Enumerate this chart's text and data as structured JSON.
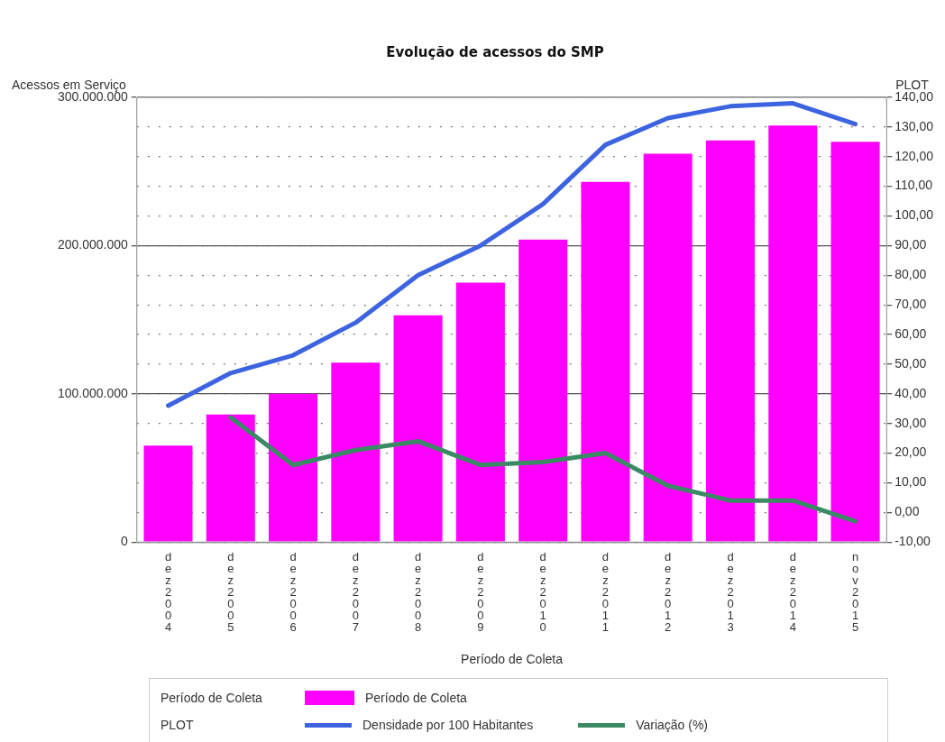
{
  "chart_data": {
    "type": "bar",
    "title": "Evolução de acessos do SMP",
    "xlabel": "Período de Coleta",
    "ylabel": "Acessos em Serviço",
    "y2label": "PLOT",
    "categories": [
      "dez2004",
      "dez2005",
      "dez2006",
      "dez2007",
      "dez2008",
      "dez2009",
      "dez2010",
      "dez2011",
      "dez2012",
      "dez2013",
      "dez2014",
      "nov2015"
    ],
    "series": [
      {
        "name": "Período de Coleta",
        "color": "#ff00ff",
        "values": [
          65000000,
          86000000,
          100000000,
          121000000,
          153000000,
          175000000,
          204000000,
          243000000,
          262000000,
          271000000,
          281000000,
          270000000
        ]
      },
      {
        "name": "Densidade por 100 Habitantes",
        "type": "line",
        "axis": "y2",
        "color": "#3d64e0",
        "values": [
          36,
          47,
          53,
          64,
          80,
          90,
          104,
          124,
          133,
          137,
          138,
          131
        ]
      },
      {
        "name": "Variação (%)",
        "type": "line",
        "axis": "y2",
        "color": "#3a8a64",
        "values": [
          null,
          32,
          16,
          21,
          24,
          16,
          17,
          20,
          9,
          4,
          4,
          -3
        ]
      }
    ],
    "ylim": [
      0,
      300000000
    ],
    "yticks": [
      {
        "value": 0,
        "label": "0"
      },
      {
        "value": 100000000,
        "label": "100.000.000"
      },
      {
        "value": 200000000,
        "label": "200.000.000"
      },
      {
        "value": 300000000,
        "label": "300.000.000"
      }
    ],
    "y2lim": [
      -10,
      140
    ],
    "y2ticks": [
      {
        "value": -10,
        "label": "-10,00"
      },
      {
        "value": 0,
        "label": "0,00"
      },
      {
        "value": 10,
        "label": "10,00"
      },
      {
        "value": 20,
        "label": "20,00"
      },
      {
        "value": 30,
        "label": "30,00"
      },
      {
        "value": 40,
        "label": "40,00"
      },
      {
        "value": 50,
        "label": "50,00"
      },
      {
        "value": 60,
        "label": "60,00"
      },
      {
        "value": 70,
        "label": "70,00"
      },
      {
        "value": 80,
        "label": "80,00"
      },
      {
        "value": 90,
        "label": "90,00"
      },
      {
        "value": 100,
        "label": "100,00"
      },
      {
        "value": 110,
        "label": "110,00"
      },
      {
        "value": 120,
        "label": "120,00"
      },
      {
        "value": 130,
        "label": "130,00"
      },
      {
        "value": 140,
        "label": "140,00"
      }
    ],
    "grid": true,
    "legend": "bottom",
    "marker": "none"
  }
}
